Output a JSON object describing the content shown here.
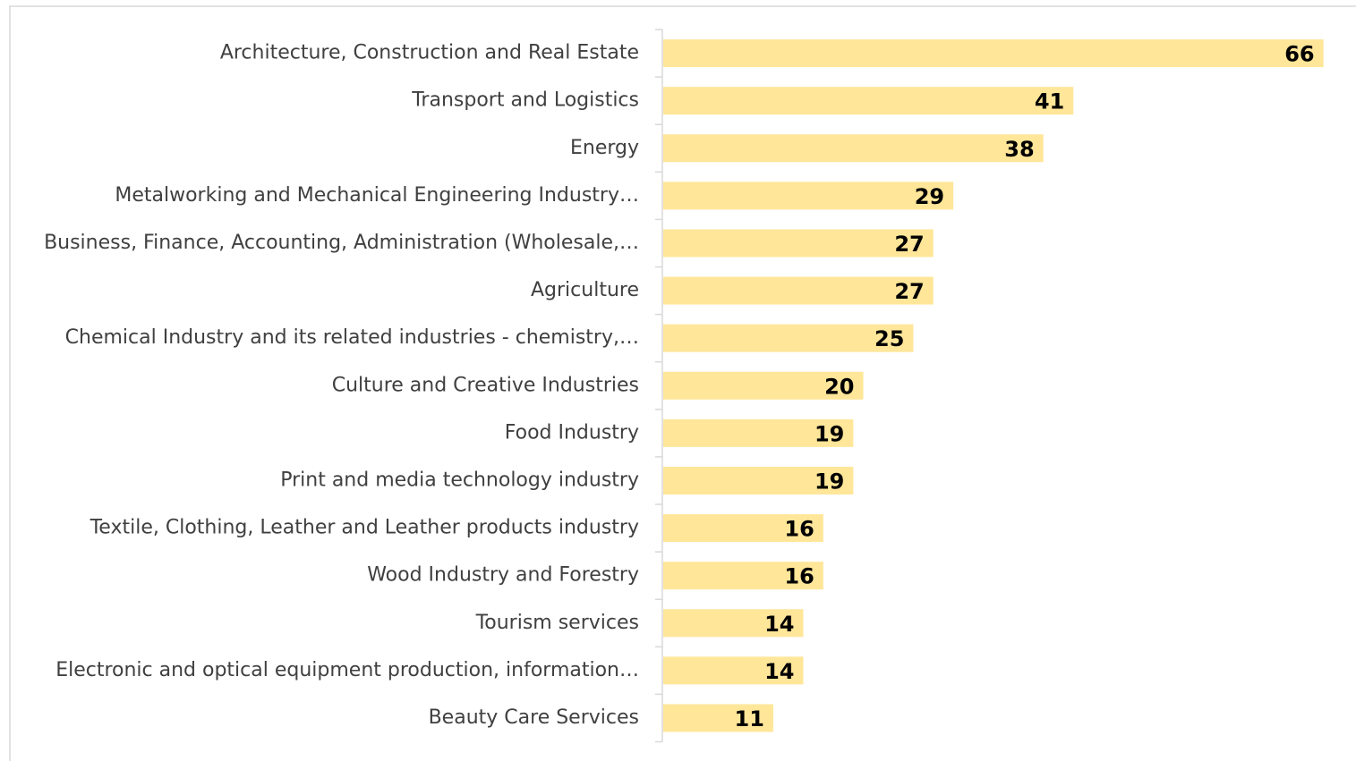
{
  "colors": {
    "bar": "#FFE699",
    "label_text": "#404040",
    "value_text": "#000000",
    "axis": "#D9D9D9",
    "frame": "#D9D9D9"
  },
  "chart_data": {
    "type": "bar",
    "orientation": "horizontal",
    "title": "",
    "xlabel": "",
    "ylabel": "",
    "xlim": [
      0,
      68
    ],
    "grid": false,
    "legend": "none",
    "categories": [
      "Architecture, Construction and Real Estate",
      "Transport and Logistics",
      "Energy",
      "Metalworking and Mechanical Engineering Industry…",
      "Business, Finance, Accounting, Administration (Wholesale,…",
      "Agriculture",
      "Chemical Industry and its related industries - chemistry,…",
      "Culture and Creative Industries",
      "Food Industry",
      "Print and media technology industry",
      "Textile, Clothing, Leather and Leather products industry",
      "Wood Industry and Forestry",
      "Tourism services",
      "Electronic and optical equipment production, information…",
      "Beauty Care Services"
    ],
    "values": [
      66,
      41,
      38,
      29,
      27,
      27,
      25,
      20,
      19,
      19,
      16,
      16,
      14,
      14,
      11
    ]
  }
}
